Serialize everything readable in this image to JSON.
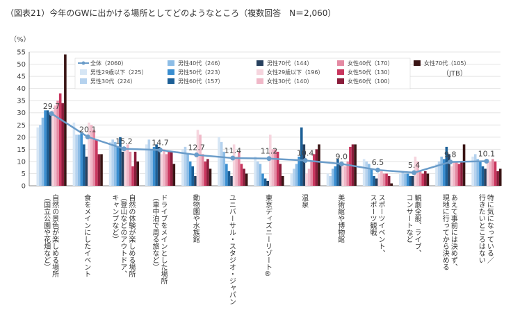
{
  "title": "（図表21）今年のGWに出かける場所としてどのようなところ（複数回答　N＝2,060）",
  "source": "（JTB）",
  "chart_data": {
    "type": "bar",
    "title": "（図表21）今年のGWに出かける場所としてどのようなところ（複数回答　N＝2,060）",
    "ylabel": "（%）",
    "ylim": [
      0,
      55
    ],
    "yticks": [
      0,
      5,
      10,
      15,
      20,
      25,
      30,
      35,
      40,
      45,
      50,
      55
    ],
    "categories": [
      [
        "自然の景色が楽しめる場所",
        "（国立公園や花畑など）"
      ],
      [
        "食をメインにしたイベント"
      ],
      [
        "自然の体験が楽しめる場所",
        "（登山などのアウトドア、",
        "キャンプなど）"
      ],
      [
        "ドライブをメインとした場所",
        "（車中泊で周る旅など）"
      ],
      [
        "動物園や水族館"
      ],
      [
        "ユニバーサル・スタジオ・ジャパン"
      ],
      [
        "東京ディズニーリゾート®"
      ],
      [
        "温泉"
      ],
      [
        "美術館や博物館"
      ],
      [
        "スポーツイベント、",
        "スポーツ観戦"
      ],
      [
        "観劇全般、ライブ、",
        "コンサートなど"
      ],
      [
        "あえて事前には決めず、",
        "現地に行ってから決める"
      ],
      [
        "特に気になっている／",
        "行きたいところはない"
      ]
    ],
    "line": {
      "name": "全体（2060）",
      "color": "#6a9cc9",
      "values": [
        29.7,
        20.1,
        15.2,
        14.7,
        12.7,
        11.4,
        11.2,
        10.4,
        9.0,
        6.5,
        5.4,
        9.8,
        10.1
      ],
      "labels": [
        "29.7",
        "20.1",
        "15.2",
        "14.7",
        "12.7",
        "11.4",
        "11.2",
        "10.4",
        "9.0",
        "6.5",
        "5.4",
        "9.8",
        "10.1"
      ]
    },
    "series": [
      {
        "name": "男性29歳以下（225）",
        "color": "#d6e6f5",
        "values": [
          24,
          26,
          18,
          17,
          15,
          20,
          12,
          5,
          5,
          11,
          5,
          9,
          12
        ]
      },
      {
        "name": "男性30代（224）",
        "color": "#b5d2ee",
        "values": [
          25,
          21,
          19,
          19,
          16,
          18,
          10,
          7,
          4,
          10,
          6,
          10,
          13
        ]
      },
      {
        "name": "男性40代（246）",
        "color": "#8dbde6",
        "values": [
          28,
          21,
          18,
          15,
          13,
          14,
          9,
          9,
          7,
          9,
          5,
          12,
          11
        ]
      },
      {
        "name": "男性50代（223）",
        "color": "#3a8ed0",
        "values": [
          31,
          22,
          16,
          16,
          10,
          9,
          5,
          12,
          8,
          7,
          5,
          11,
          10
        ]
      },
      {
        "name": "男性60代（157）",
        "color": "#1c5f96",
        "values": [
          31,
          17,
          20,
          17,
          8,
          6,
          3,
          24,
          11,
          4,
          4,
          16,
          8
        ]
      },
      {
        "name": "男性70代（144）",
        "color": "#27405e",
        "values": [
          30,
          12,
          14,
          16,
          4,
          4,
          2,
          17,
          9,
          3,
          4,
          13,
          7
        ]
      },
      {
        "name": "女性29歳以下（196）",
        "color": "#f6d5de",
        "values": [
          31,
          26,
          15,
          13,
          23,
          17,
          21,
          5,
          9,
          5,
          12,
          8,
          11
        ]
      },
      {
        "name": "女性30代（140）",
        "color": "#f0b8c8",
        "values": [
          33,
          25,
          17,
          15,
          21,
          12,
          15,
          7,
          8,
          6,
          10,
          10,
          10
        ]
      },
      {
        "name": "女性40代（170）",
        "color": "#e48aa3",
        "values": [
          35,
          23,
          14,
          13,
          13,
          14,
          15,
          10,
          10,
          5,
          6,
          10,
          11
        ]
      },
      {
        "name": "女性50代（130）",
        "color": "#c9365e",
        "values": [
          38,
          19,
          8,
          14,
          10,
          9,
          14,
          13,
          16,
          5,
          5,
          9,
          10
        ]
      },
      {
        "name": "女性60代（100）",
        "color": "#8a1d3b",
        "values": [
          34,
          13,
          14,
          14,
          11,
          7,
          9,
          15,
          17,
          4,
          6,
          10,
          6
        ]
      },
      {
        "name": "女性70代（105）",
        "color": "#3a1515",
        "values": [
          54,
          13,
          10,
          9,
          7,
          5,
          4,
          17,
          17,
          1,
          5,
          17,
          7
        ]
      }
    ],
    "legend": {
      "placement": "top",
      "entries": [
        "全体（2060）",
        "男性29歳以下（225）",
        "男性30代（224）",
        "男性40代（246）",
        "男性50代（223）",
        "男性60代（157）",
        "男性70代（144）",
        "女性29歳以下（196）",
        "女性30代（140）",
        "女性40代（170）",
        "女性50代（130）",
        "女性60代（100）",
        "女性70代（105）"
      ]
    }
  }
}
